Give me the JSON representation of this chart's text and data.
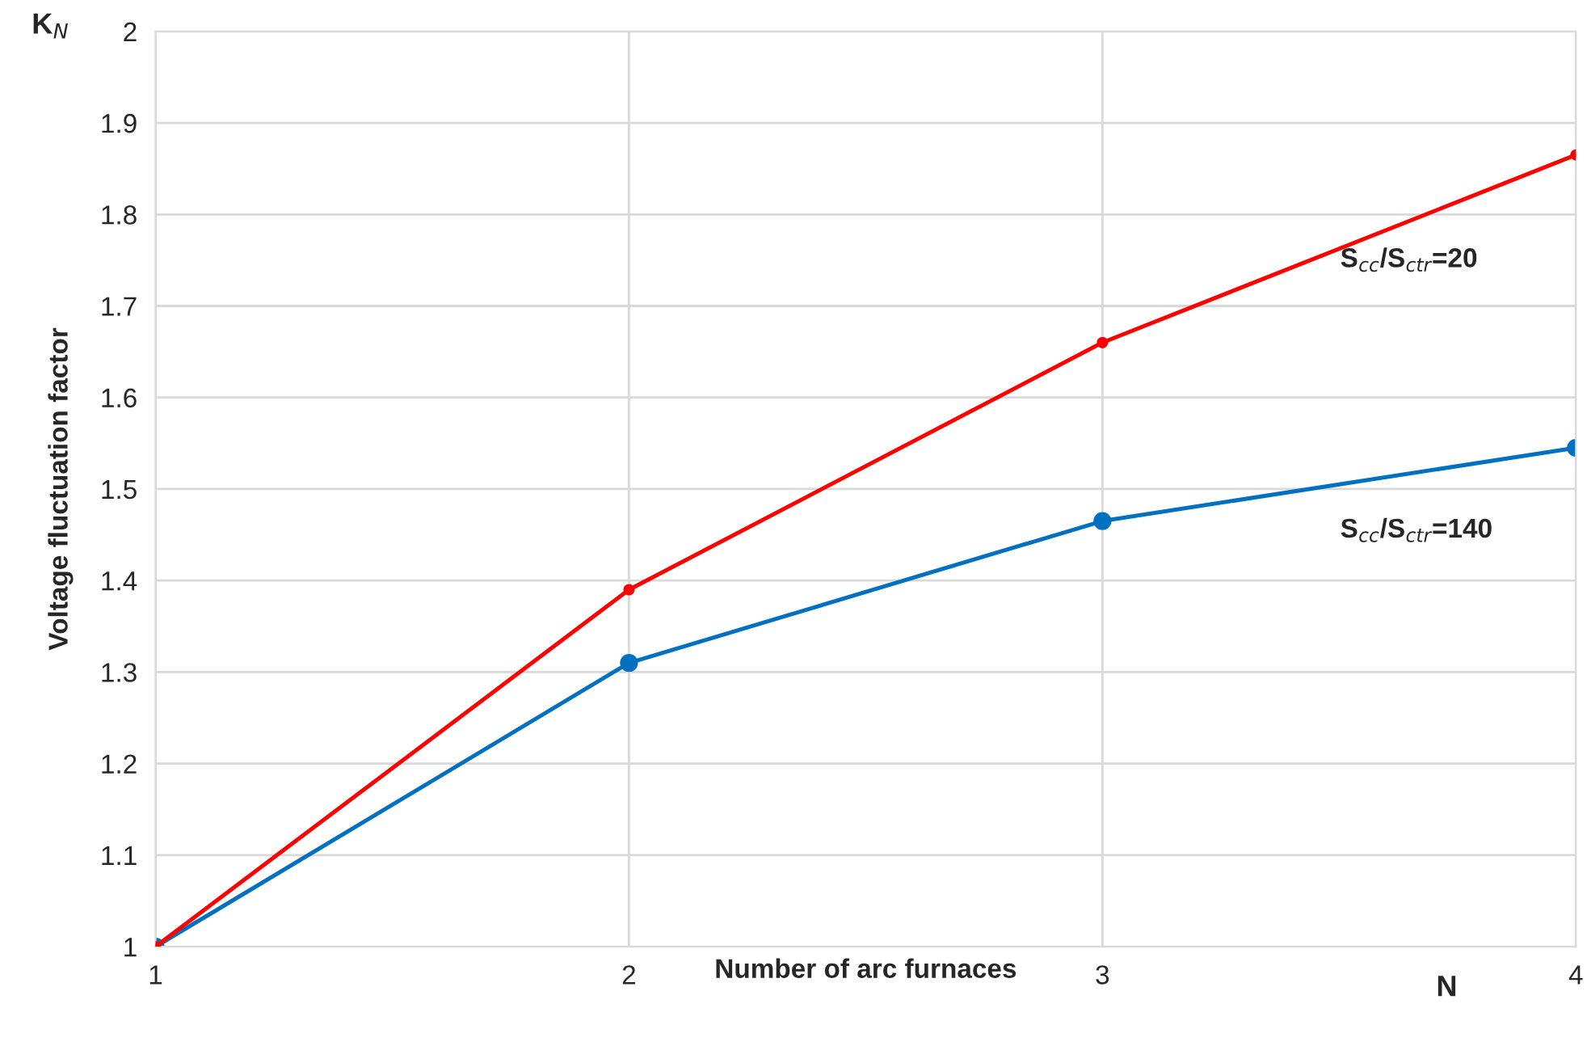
{
  "chart_data": {
    "type": "line",
    "xlabel": "Number of arc furnaces",
    "ylabel": "Voltage fluctuation factor",
    "annotations": [
      "K$_{N}$",
      "N"
    ],
    "x": [
      1,
      2,
      3,
      4
    ],
    "series": [
      {
        "name": "S$_{cc}$/S$_{ctr}$=20",
        "color": "#ff0000",
        "values": [
          1,
          1.39,
          1.66,
          1.865
        ]
      },
      {
        "name": "S$_{cc}$/S$_{ctr}$=140",
        "color": "#0070c0",
        "values": [
          1,
          1.31,
          1.465,
          1.545
        ]
      }
    ],
    "xlim": [
      1,
      4
    ],
    "xticks": [
      1,
      2,
      3,
      4
    ],
    "ylim": [
      1,
      2
    ],
    "yticks": [
      1,
      1.1,
      1.2,
      1.3,
      1.4,
      1.5,
      1.6,
      1.7,
      1.8,
      1.9,
      2
    ],
    "grid": true,
    "marker": "circle",
    "line_style": "solid"
  }
}
